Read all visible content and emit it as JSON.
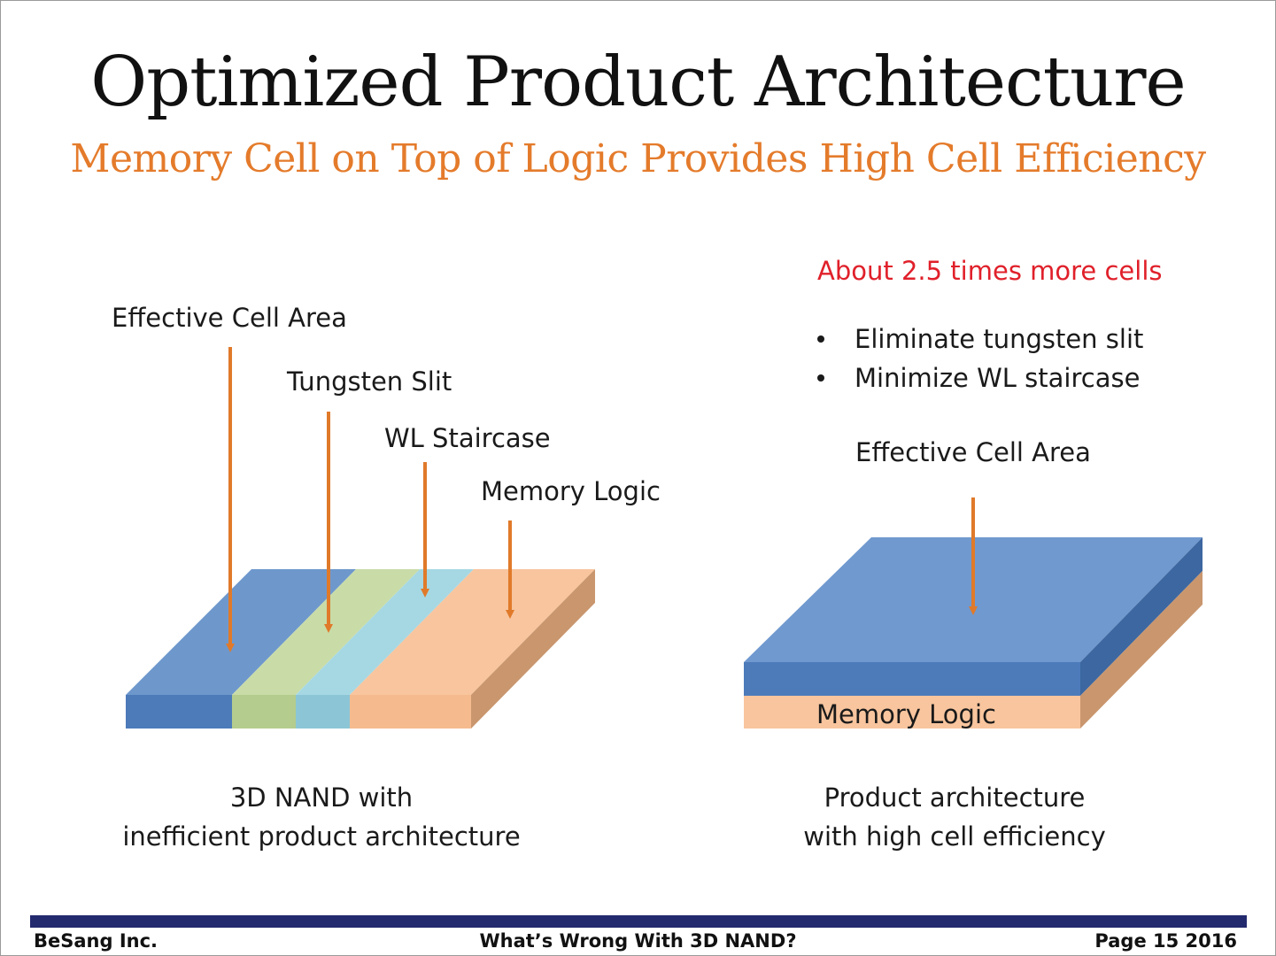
{
  "slide": {
    "title": "Optimized Product Architecture",
    "subtitle": "Memory Cell on Top of Logic Provides High Cell Efficiency"
  },
  "left_diagram": {
    "labels": {
      "effective_cell_area": "Effective Cell Area",
      "tungsten_slit": "Tungsten Slit",
      "wl_staircase": "WL Staircase",
      "memory_logic": "Memory Logic"
    },
    "caption_line1": "3D NAND with",
    "caption_line2": "inefficient product architecture"
  },
  "right_diagram": {
    "highlight": "About 2.5 times more cells",
    "bullets": [
      "Eliminate tungsten slit",
      "Minimize WL staircase"
    ],
    "effective_cell_area": "Effective Cell Area",
    "memory_logic": "Memory Logic",
    "caption_line1": "Product architecture",
    "caption_line2": "with high cell efficiency"
  },
  "footer": {
    "company": "BeSang Inc.",
    "center": "What’s Wrong With 3D NAND?",
    "page": "Page 15 2016"
  },
  "colors": {
    "title": "#111111",
    "subtitle": "#e47b2b",
    "highlight": "#e0202a",
    "arrow": "#e07a2a",
    "cell_blue": "#6e98cc",
    "slit_green": "#c9dca8",
    "staircase_cyan": "#a6d8e4",
    "logic_peach": "#f8c59e",
    "footer_bar": "#232a6e"
  }
}
